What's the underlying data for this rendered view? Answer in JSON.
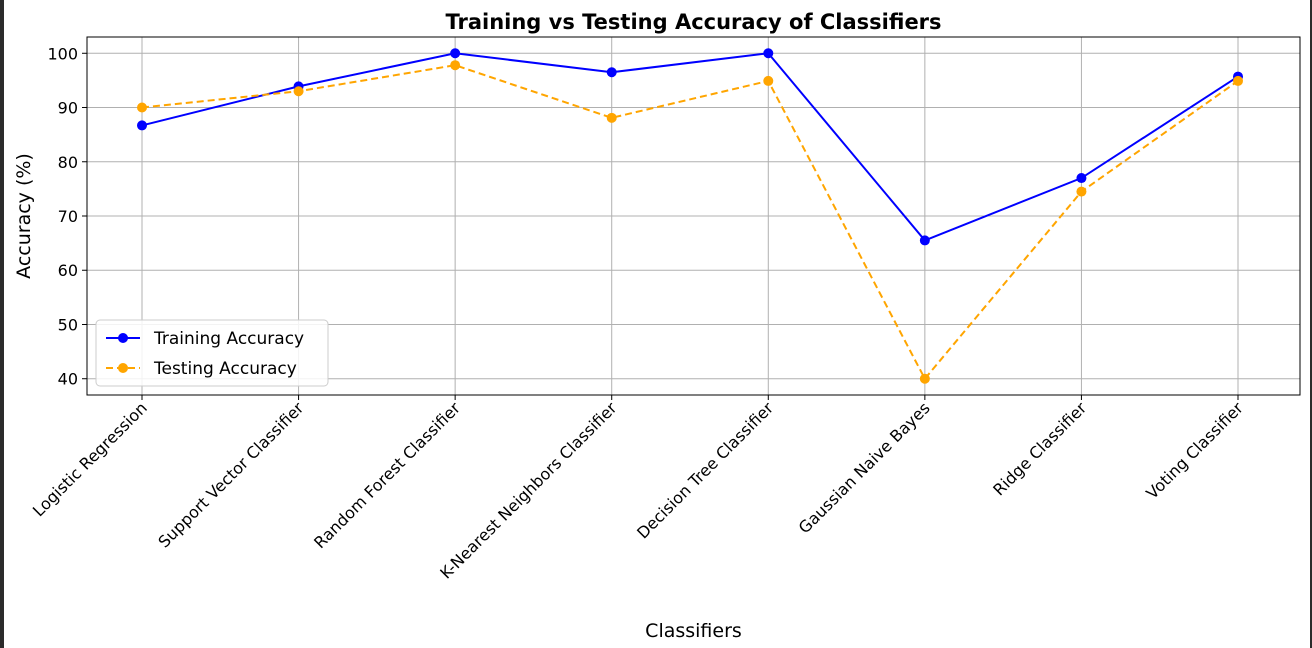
{
  "chart_data": {
    "type": "line",
    "title": "Training vs Testing Accuracy of Classifiers",
    "xlabel": "Classifiers",
    "ylabel": "Accuracy (%)",
    "categories": [
      "Logistic Regression",
      "Support Vector Classifier",
      "Random Forest Classifier",
      "K-Nearest Neighbors Classifier",
      "Decision Tree Classifier",
      "Gaussian Naive Bayes",
      "Ridge Classifier",
      "Voting Classifier"
    ],
    "ylim": [
      37,
      103
    ],
    "yticks": [
      40,
      50,
      60,
      70,
      80,
      90,
      100
    ],
    "grid": true,
    "legend_position": "lower-left",
    "series": [
      {
        "name": "Training Accuracy",
        "values": [
          86.7,
          93.9,
          100.0,
          96.5,
          100.0,
          65.5,
          77.0,
          95.7
        ],
        "color": "#0000ff",
        "line_style": "solid",
        "marker": "circle"
      },
      {
        "name": "Testing Accuracy",
        "values": [
          90.0,
          93.0,
          97.8,
          88.1,
          94.9,
          40.0,
          74.5,
          94.9
        ],
        "color": "#ffa500",
        "line_style": "dashed",
        "marker": "circle"
      }
    ]
  }
}
